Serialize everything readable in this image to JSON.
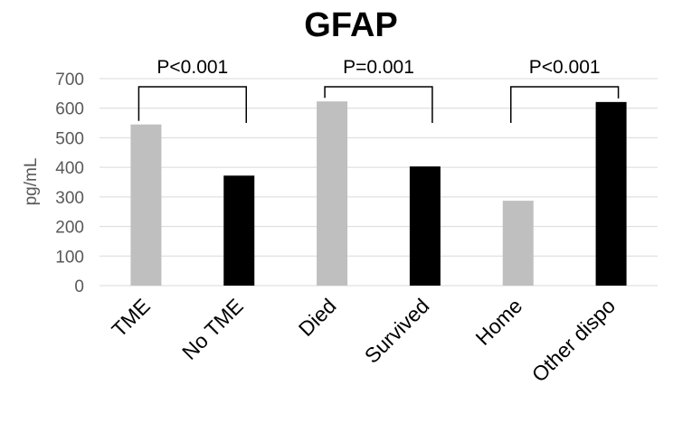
{
  "chart_data": {
    "type": "bar",
    "title": "GFAP",
    "xlabel": "",
    "ylabel": "pg/mL",
    "ylim": [
      0,
      700
    ],
    "yticks": [
      0,
      100,
      200,
      300,
      400,
      500,
      600,
      700
    ],
    "grid": true,
    "categories": [
      "TME",
      "No TME",
      "Died",
      "Survived",
      "Home",
      "Other dispo"
    ],
    "values": [
      545,
      372,
      623,
      403,
      287,
      621
    ],
    "bar_colors": [
      "#bfbfbf",
      "#000000",
      "#bfbfbf",
      "#000000",
      "#bfbfbf",
      "#000000"
    ],
    "annotations": [
      {
        "text": "P<0.001",
        "from": 0,
        "to": 1
      },
      {
        "text": "P=0.001",
        "from": 2,
        "to": 3
      },
      {
        "text": "P<0.001",
        "from": 4,
        "to": 5
      }
    ]
  }
}
